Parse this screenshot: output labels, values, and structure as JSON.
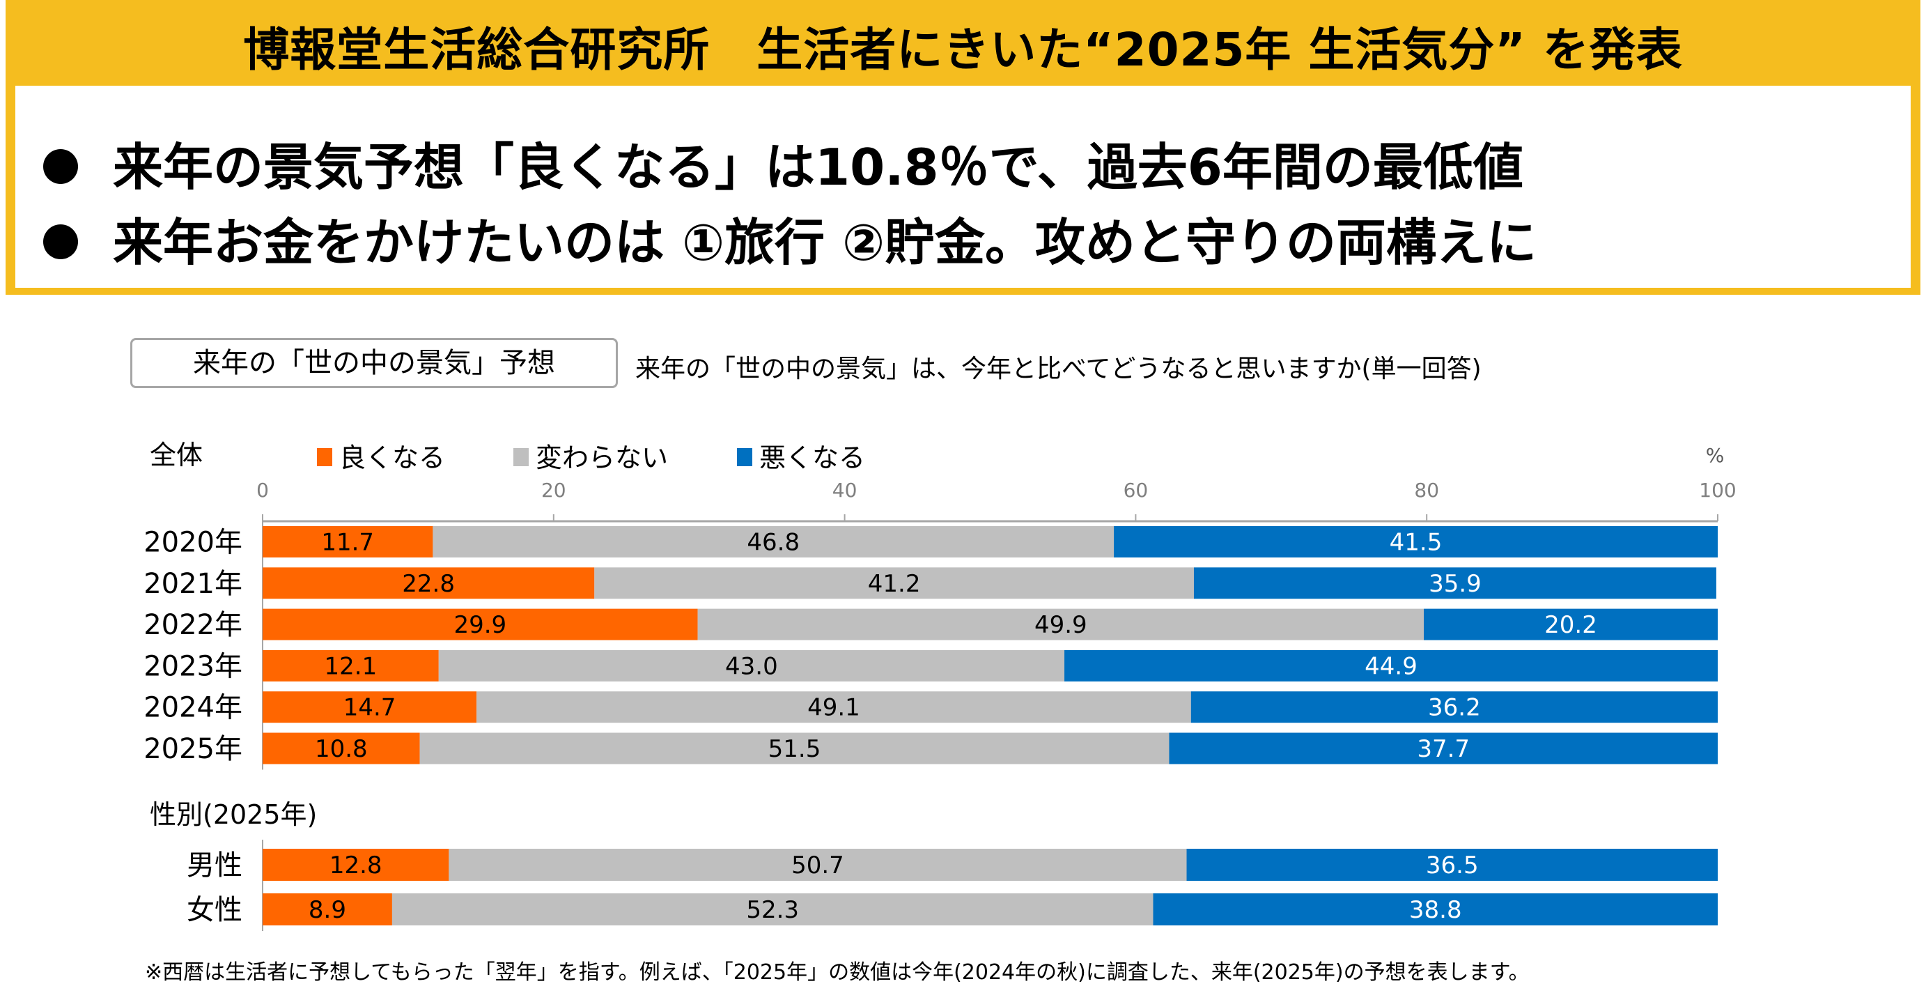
{
  "header": {
    "title": "博報堂生活総合研究所　生活者にきいた“2025年  生活気分” を発表",
    "bullets": [
      "来年の景気予想「良くなる」は10.8％で、過去6年間の最低値",
      "来年お金をかけたいのは ①旅行 ②貯金。攻めと守りの両構えに"
    ]
  },
  "question": {
    "box_label": "来年の「世の中の景気」予想",
    "text": "来年の「世の中の景気」は、今年と比べてどうなると思いますか(単一回答)"
  },
  "sections": {
    "overall": "全体",
    "gender": "性別(2025年)"
  },
  "footnote": "※西暦は生活者に予想してもらった「翌年」を指す。例えば、「2025年」の数値は今年(2024年の秋)に調査した、来年(2025年)の予想を表します。",
  "colors": {
    "better": "#ff6600",
    "same": "#bfbfbf",
    "worse": "#0070c0",
    "frame": "#f5bd1f"
  },
  "chart_data": {
    "type": "bar",
    "orientation": "horizontal",
    "stacked": true,
    "unit_label": "%",
    "xlim": [
      0,
      100
    ],
    "ticks": [
      "0",
      "20",
      "40",
      "60",
      "80",
      "100"
    ],
    "legend_placement": "top",
    "series": [
      {
        "name": "良くなる",
        "color": "#ff6600"
      },
      {
        "name": "変わらない",
        "color": "#bfbfbf"
      },
      {
        "name": "悪くなる",
        "color": "#0070c0"
      }
    ],
    "groups": [
      {
        "categories": [
          "2020年",
          "2021年",
          "2022年",
          "2023年",
          "2024年",
          "2025年"
        ],
        "values": [
          [
            11.7,
            46.8,
            41.5
          ],
          [
            22.8,
            41.2,
            35.9
          ],
          [
            29.9,
            49.9,
            20.2
          ],
          [
            12.1,
            43.0,
            44.9
          ],
          [
            14.7,
            49.1,
            36.2
          ],
          [
            10.8,
            51.5,
            37.7
          ]
        ]
      },
      {
        "categories": [
          "男性",
          "女性"
        ],
        "values": [
          [
            12.8,
            50.7,
            36.5
          ],
          [
            8.9,
            52.3,
            38.8
          ]
        ]
      }
    ]
  }
}
